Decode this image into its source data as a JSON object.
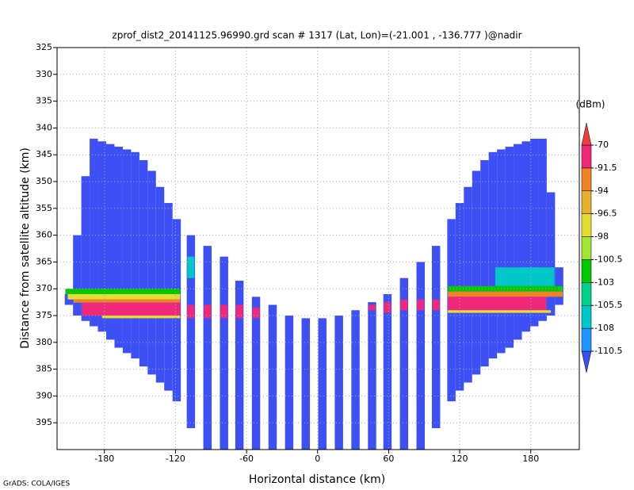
{
  "chart_data": {
    "type": "swath",
    "title": "zprof_dist2_20141125.96990.grd  scan # 1317  (Lat, Lon)=(-21.001 , -136.777 )@nadir",
    "xlabel": "Horizontal distance (km)",
    "ylabel": "Distance from satellite altitude (km)",
    "colorbar_label": "(dBm)",
    "footer": "GrADS: COLA/IGES",
    "xlim": [
      -220,
      221
    ],
    "ylim": [
      325,
      400
    ],
    "y_inverted": true,
    "grid": true,
    "xticks": [
      -180,
      -120,
      -60,
      0,
      60,
      120,
      180
    ],
    "yticks": [
      325,
      330,
      335,
      340,
      345,
      350,
      355,
      360,
      365,
      370,
      375,
      380,
      385,
      390,
      395
    ],
    "levels": [
      -110.5,
      -108,
      -105.5,
      -103,
      -100.5,
      -98,
      -96.5,
      -94,
      -91.5,
      -70
    ],
    "colors": [
      "#3c50f5",
      "#1e96ff",
      "#00c8c8",
      "#00d28c",
      "#00c800",
      "#a0e632",
      "#e6dc32",
      "#e6af2d",
      "#f08228",
      "#f0287a",
      "#f03c3c"
    ],
    "column_width": 7,
    "columns": [
      {
        "x": -210,
        "top": 371,
        "bottom": 373
      },
      {
        "x": -203,
        "top": 360,
        "bottom": 375
      },
      {
        "x": -196,
        "top": 349,
        "bottom": 376
      },
      {
        "x": -189,
        "top": 342,
        "bottom": 377
      },
      {
        "x": -182,
        "top": 342.5,
        "bottom": 378
      },
      {
        "x": -175,
        "top": 343,
        "bottom": 379.5
      },
      {
        "x": -168,
        "top": 343.5,
        "bottom": 381
      },
      {
        "x": -161,
        "top": 344,
        "bottom": 382
      },
      {
        "x": -154,
        "top": 344.5,
        "bottom": 383
      },
      {
        "x": -147,
        "top": 346,
        "bottom": 384.5
      },
      {
        "x": -140,
        "top": 348,
        "bottom": 386
      },
      {
        "x": -133,
        "top": 351,
        "bottom": 387.5
      },
      {
        "x": -126,
        "top": 354,
        "bottom": 389
      },
      {
        "x": -119,
        "top": 357,
        "bottom": 391
      },
      {
        "x": -107,
        "top": 360,
        "bottom": 396
      },
      {
        "x": -93,
        "top": 362,
        "bottom": 400
      },
      {
        "x": -79,
        "top": 364,
        "bottom": 400
      },
      {
        "x": -66,
        "top": 368.5,
        "bottom": 400
      },
      {
        "x": -52,
        "top": 371.5,
        "bottom": 400
      },
      {
        "x": -38,
        "top": 373,
        "bottom": 400
      },
      {
        "x": -24,
        "top": 375,
        "bottom": 400
      },
      {
        "x": -10,
        "top": 375.5,
        "bottom": 400
      },
      {
        "x": 4,
        "top": 375.5,
        "bottom": 400
      },
      {
        "x": 18,
        "top": 375,
        "bottom": 400
      },
      {
        "x": 32,
        "top": 374,
        "bottom": 400
      },
      {
        "x": 46,
        "top": 372.5,
        "bottom": 400
      },
      {
        "x": 59,
        "top": 371,
        "bottom": 400
      },
      {
        "x": 73,
        "top": 368,
        "bottom": 400
      },
      {
        "x": 87,
        "top": 365,
        "bottom": 400
      },
      {
        "x": 100,
        "top": 362,
        "bottom": 396
      },
      {
        "x": 113,
        "top": 357,
        "bottom": 391
      },
      {
        "x": 120,
        "top": 354,
        "bottom": 389
      },
      {
        "x": 127,
        "top": 351,
        "bottom": 387.5
      },
      {
        "x": 134,
        "top": 348,
        "bottom": 386
      },
      {
        "x": 141,
        "top": 346,
        "bottom": 384.5
      },
      {
        "x": 148,
        "top": 344.5,
        "bottom": 383
      },
      {
        "x": 155,
        "top": 344,
        "bottom": 382
      },
      {
        "x": 162,
        "top": 343.5,
        "bottom": 381
      },
      {
        "x": 169,
        "top": 343,
        "bottom": 379.5
      },
      {
        "x": 176,
        "top": 342.5,
        "bottom": 378
      },
      {
        "x": 183,
        "top": 342,
        "bottom": 377
      },
      {
        "x": 190,
        "top": 342,
        "bottom": 376
      },
      {
        "x": 197,
        "top": 352,
        "bottom": 375
      },
      {
        "x": 204,
        "top": 366,
        "bottom": 373
      }
    ],
    "bands": [
      {
        "x0": -213,
        "x1": -116,
        "y0": 370,
        "y1": 371,
        "value": -102
      },
      {
        "x0": -211,
        "x1": -116,
        "y0": 371,
        "y1": 372,
        "value": -97
      },
      {
        "x0": -206,
        "x1": -116,
        "y0": 372,
        "y1": 372.6,
        "value": -93
      },
      {
        "x0": -199,
        "x1": -116,
        "y0": 372.6,
        "y1": 375,
        "value": -85
      },
      {
        "x0": -182,
        "x1": -116,
        "y0": 375,
        "y1": 375.5,
        "value": -97
      },
      {
        "x0": -110,
        "x1": -104,
        "y0": 364,
        "y1": 368,
        "value": -107
      },
      {
        "x0": -110,
        "x1": -104,
        "y0": 373,
        "y1": 375.5,
        "value": -85
      },
      {
        "x0": -96,
        "x1": -90,
        "y0": 373,
        "y1": 375.5,
        "value": -85
      },
      {
        "x0": -82,
        "x1": -76,
        "y0": 373,
        "y1": 375.5,
        "value": -85
      },
      {
        "x0": -69,
        "x1": -63,
        "y0": 373,
        "y1": 375.5,
        "value": -85
      },
      {
        "x0": -55,
        "x1": -49,
        "y0": 373.5,
        "y1": 375.5,
        "value": -85
      },
      {
        "x0": 43,
        "x1": 49,
        "y0": 373,
        "y1": 374,
        "value": -85
      },
      {
        "x0": 56,
        "x1": 62,
        "y0": 372.5,
        "y1": 374.5,
        "value": -85
      },
      {
        "x0": 70,
        "x1": 76,
        "y0": 372,
        "y1": 374,
        "value": -85
      },
      {
        "x0": 84,
        "x1": 90,
        "y0": 372,
        "y1": 374,
        "value": -85
      },
      {
        "x0": 97,
        "x1": 103,
        "y0": 372,
        "y1": 374,
        "value": -85
      },
      {
        "x0": 150,
        "x1": 200,
        "y0": 366,
        "y1": 369.5,
        "value": -106
      },
      {
        "x0": 110,
        "x1": 207,
        "y0": 369.5,
        "y1": 370.5,
        "value": -102
      },
      {
        "x0": 110,
        "x1": 207,
        "y0": 370.5,
        "y1": 371.5,
        "value": -93
      },
      {
        "x0": 110,
        "x1": 193,
        "y0": 371.5,
        "y1": 374,
        "value": -85
      },
      {
        "x0": 110,
        "x1": 197,
        "y0": 374,
        "y1": 374.5,
        "value": -97
      }
    ]
  }
}
